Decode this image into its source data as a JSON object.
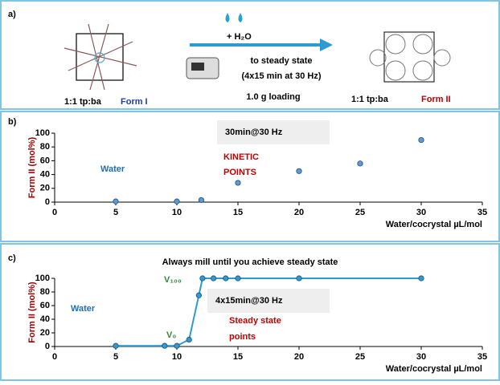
{
  "panel_a": {
    "label": "a)",
    "reagent": "+ H₂O",
    "conditions": [
      "to steady state",
      "(4x15 min at 30 Hz)"
    ],
    "loading": "1.0 g loading",
    "left_ratio": "1:1 tp:ba",
    "left_form": "Form I",
    "right_ratio": "1:1 tp:ba",
    "right_form": "Form II"
  },
  "chart_data": [
    {
      "type": "scatter",
      "label": "b)",
      "y_label": "Form II (mol%)",
      "x_label": "Water/cocrystal  µL/mol",
      "annotations": [
        "30min@30 Hz",
        "KINETIC",
        "POINTS",
        "Water"
      ],
      "x": [
        5,
        10,
        12,
        15,
        20,
        25,
        30
      ],
      "values": [
        1,
        1,
        3,
        28,
        45,
        56,
        90
      ],
      "color": "#5b9bd5",
      "xlim": [
        0,
        35
      ],
      "xticks": [
        0,
        5,
        10,
        15,
        20,
        25,
        30,
        35
      ],
      "ylim": [
        0,
        100
      ],
      "yticks": [
        0,
        20,
        40,
        60,
        80,
        100
      ]
    },
    {
      "type": "line",
      "label": "c)",
      "title": "Always mill until you achieve steady state",
      "y_label": "Form II (mol%)",
      "x_label": "Water/cocrystal  µL/mol",
      "annotations": [
        "4x15min@30 Hz",
        "Steady state",
        "points",
        "Water",
        "V₁₀₀",
        "V₀"
      ],
      "x": [
        5,
        9,
        10,
        11,
        11.8,
        12.1,
        13,
        14,
        15,
        20,
        30
      ],
      "values": [
        1,
        1,
        1,
        10,
        75,
        100,
        100,
        100,
        100,
        100,
        100
      ],
      "color": "#2e9bd0",
      "xlim": [
        0,
        35
      ],
      "xticks": [
        0,
        5,
        10,
        15,
        20,
        25,
        30,
        35
      ],
      "ylim": [
        0,
        100
      ],
      "yticks": [
        0,
        20,
        40,
        60,
        80,
        100
      ]
    }
  ]
}
